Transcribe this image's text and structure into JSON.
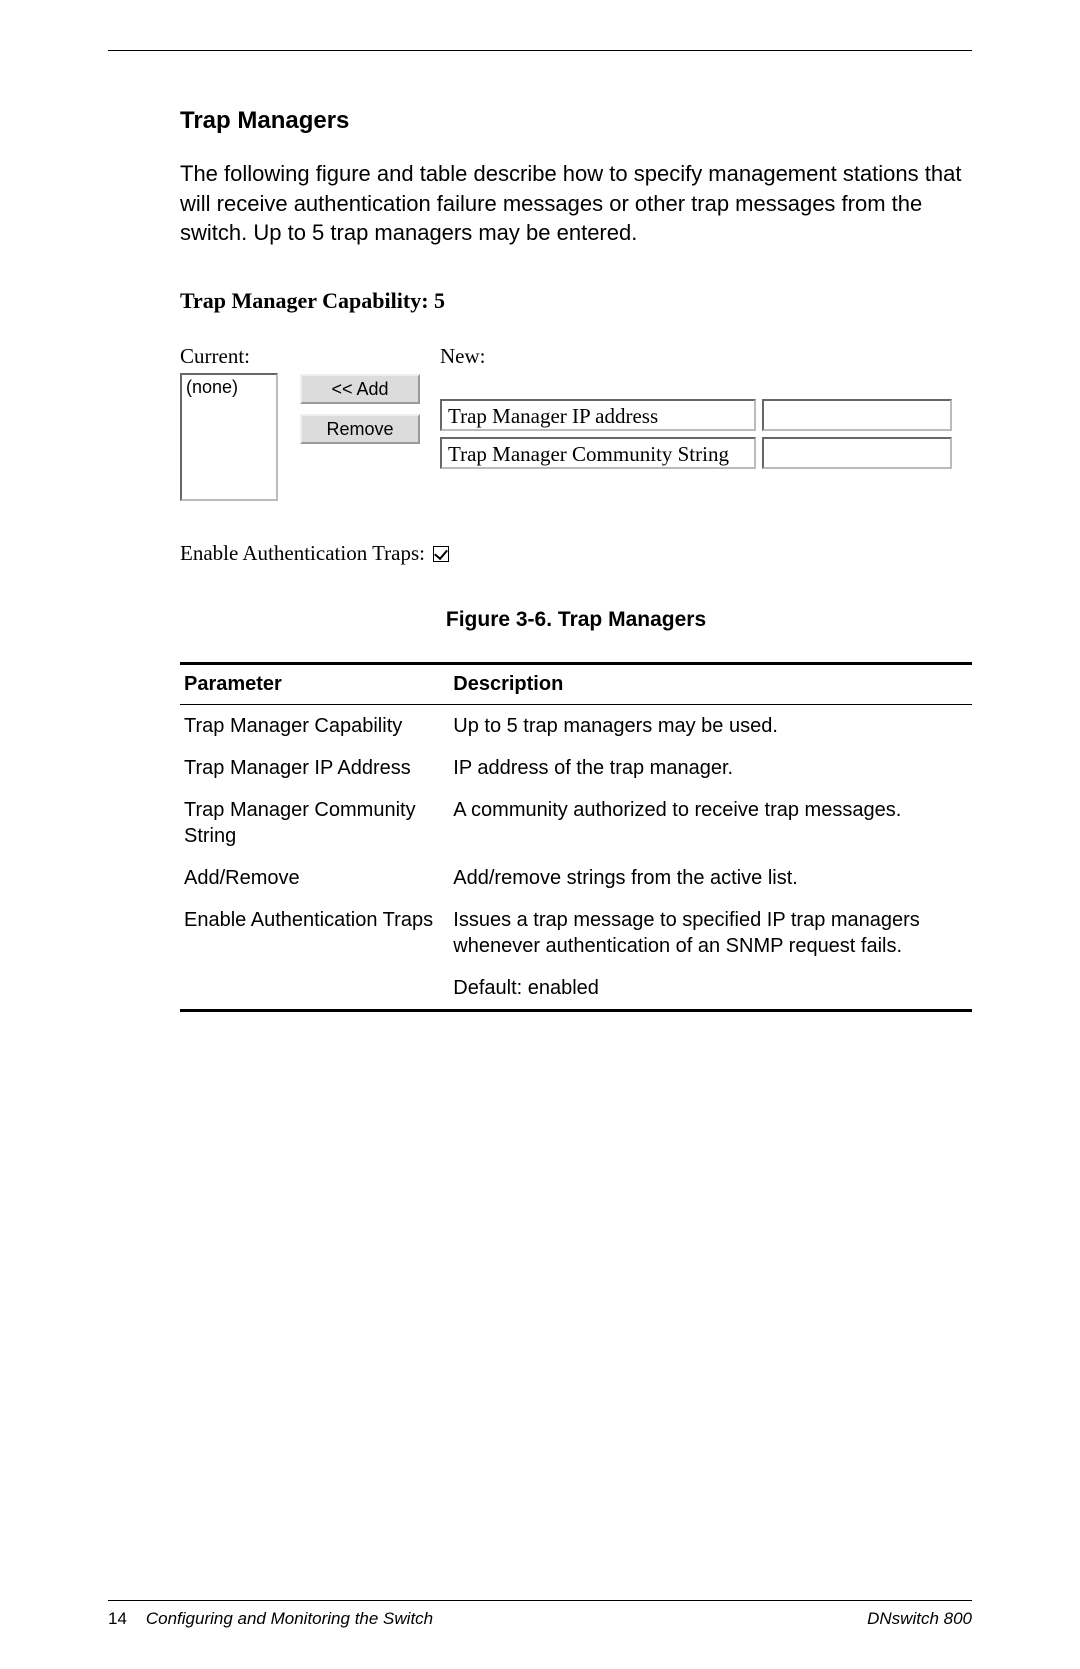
{
  "section_title": "Trap Managers",
  "intro_text": "The following figure and table describe how to specify management stations that will receive authentication failure messages or other trap messages from the switch. Up to 5 trap managers may be entered.",
  "capability_line": "Trap Manager Capability: 5",
  "figure": {
    "current_label": "Current:",
    "new_label": "New:",
    "listbox_value": "(none)",
    "add_button": "<< Add",
    "remove_button": "Remove",
    "row1_label": "Trap Manager IP address",
    "row2_label": "Trap Manager Community String",
    "enable_label": "Enable Authentication Traps:",
    "checkbox_checked": true
  },
  "figure_caption": "Figure 3-6.  Trap Managers",
  "table": {
    "columns": [
      "Parameter",
      "Description"
    ],
    "rows": [
      [
        "Trap Manager Capability",
        "Up to 5 trap managers may be used."
      ],
      [
        "Trap Manager IP Address",
        "IP address of the trap manager."
      ],
      [
        "Trap Manager Community String",
        "A community authorized to receive trap messages."
      ],
      [
        "Add/Remove",
        "Add/remove strings from the active list."
      ],
      [
        "Enable Authentication Traps",
        "Issues a trap message to specified IP trap managers whenever authentication of an SNMP request fails."
      ],
      [
        "",
        "Default: enabled"
      ]
    ]
  },
  "footer": {
    "left_page": "14",
    "left_text": "Configuring and Monitoring the Switch",
    "right_text": "DNswitch 800"
  }
}
